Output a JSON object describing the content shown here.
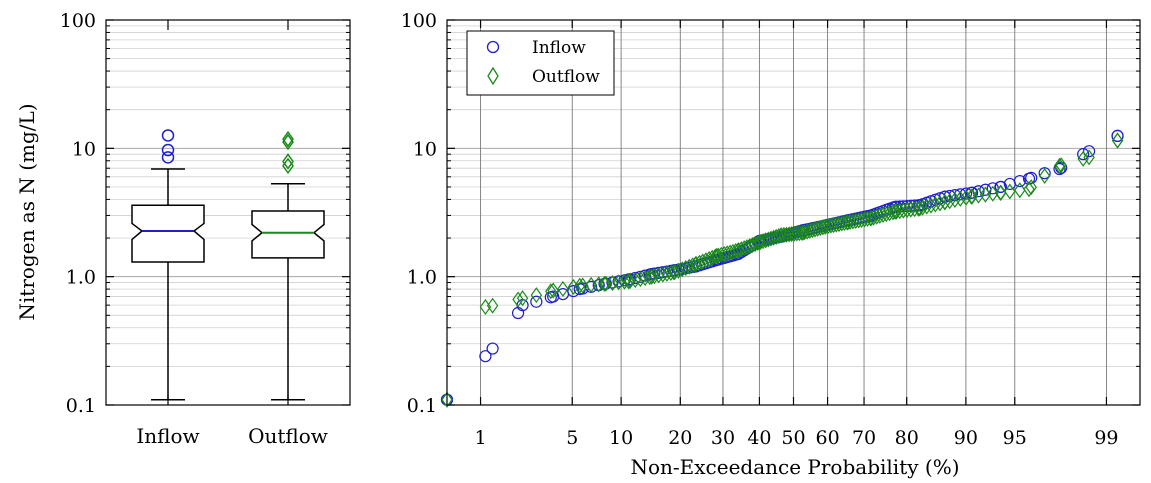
{
  "chart_data": [
    {
      "type": "box",
      "ylabel": "Nitrogen as N (mg/L)",
      "yscale": "log",
      "ylim": [
        0.1,
        100
      ],
      "yticks": [
        "0.1",
        "1.0",
        "10",
        "100"
      ],
      "grid": true,
      "categories": [
        "Inflow",
        "Outflow"
      ],
      "boxes": [
        {
          "name": "Inflow",
          "min": 0.11,
          "q1": 1.3,
          "median": 2.27,
          "q3": 3.6,
          "max": 6.9,
          "notch_low": 1.95,
          "notch_high": 2.6,
          "outliers": [
            8.5,
            9.7,
            12.6
          ],
          "color": "#1f1fd0",
          "median_color": "#1f1fd0"
        },
        {
          "name": "Outflow",
          "min": 0.11,
          "q1": 1.4,
          "median": 2.2,
          "q3": 3.25,
          "max": 5.3,
          "notch_low": 1.9,
          "notch_high": 2.55,
          "outliers": [
            7.3,
            7.9,
            11.2,
            11.8
          ],
          "color": "#1a8a1a",
          "median_color": "#1a8a1a"
        }
      ]
    },
    {
      "type": "scatter",
      "xlabel": "Non-Exceedance Probability (%)",
      "xscale": "probability",
      "yscale": "log",
      "ylim": [
        0.1,
        100
      ],
      "xlim": [
        0.5,
        99.5
      ],
      "xticks": [
        "1",
        "5",
        "10",
        "20",
        "30",
        "40",
        "50",
        "60",
        "70",
        "80",
        "90",
        "95",
        "99"
      ],
      "yticks": [
        "0.1",
        "1.0",
        "10",
        "100"
      ],
      "grid": true,
      "legend_position": "top-left",
      "series": [
        {
          "name": "Inflow",
          "marker": "circle",
          "color": "#1f1fd0",
          "x": [
            0.5,
            1.1,
            2.2,
            3.7,
            5.6,
            8.0,
            11.0,
            14.6,
            18.7,
            23.3,
            28.4,
            34.0,
            40.0,
            46.3,
            52.8,
            59.3,
            65.7,
            71.8,
            77.5,
            82.6,
            87.0,
            90.7,
            93.8,
            96.0,
            97.6,
            98.6,
            99.2
          ],
          "y": [
            0.11,
            0.24,
            0.6,
            0.7,
            0.8,
            0.88,
            0.95,
            1.05,
            1.12,
            1.2,
            1.35,
            1.5,
            1.9,
            2.05,
            2.3,
            2.5,
            2.75,
            3.0,
            3.5,
            3.6,
            4.2,
            4.5,
            5.0,
            5.8,
            6.9,
            9.5,
            12.5
          ]
        },
        {
          "name": "Outflow",
          "marker": "diamond",
          "color": "#1a8a1a",
          "x": [
            0.5,
            1.1,
            2.2,
            3.7,
            5.6,
            8.0,
            11.0,
            14.6,
            18.7,
            23.3,
            28.4,
            34.0,
            40.0,
            46.3,
            52.8,
            59.3,
            65.7,
            71.8,
            77.5,
            82.6,
            87.0,
            90.7,
            93.8,
            96.0,
            97.6,
            98.6,
            99.2
          ],
          "y": [
            0.11,
            0.58,
            0.68,
            0.78,
            0.85,
            0.88,
            0.92,
            1.0,
            1.08,
            1.25,
            1.45,
            1.6,
            1.85,
            2.1,
            2.2,
            2.45,
            2.65,
            2.85,
            3.2,
            3.4,
            3.8,
            4.2,
            4.5,
            4.8,
            7.3,
            8.5,
            11.5
          ]
        }
      ]
    }
  ]
}
